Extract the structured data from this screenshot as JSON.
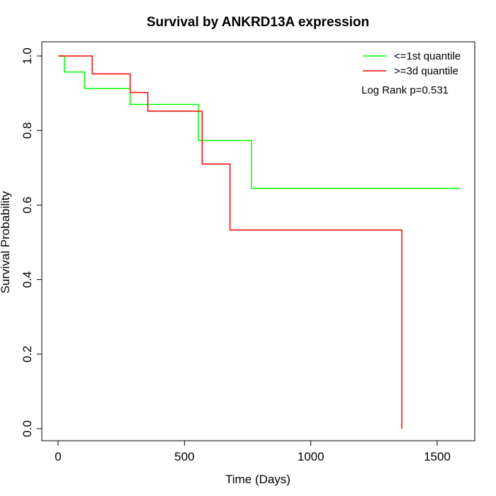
{
  "chart_data": {
    "type": "line",
    "title": "Survival by ANKRD13A expression",
    "xlabel": "Time (Days)",
    "ylabel": "Survival Probability",
    "xlim": [
      0,
      1600
    ],
    "ylim": [
      0,
      1.0
    ],
    "x_ticks": [
      0,
      500,
      1000,
      1500
    ],
    "x_tick_labels": [
      "0",
      "500",
      "1000",
      "1500"
    ],
    "y_ticks": [
      0.0,
      0.2,
      0.4,
      0.6,
      0.8,
      1.0
    ],
    "y_tick_labels": [
      "0.0",
      "0.2",
      "0.4",
      "0.6",
      "0.8",
      "1.0"
    ],
    "grid": false,
    "legend_position": "top-right",
    "annotation": "Log Rank p=0.531",
    "series": [
      {
        "name": "<=1st quantile",
        "color": "#00ff00",
        "step": true,
        "x": [
          0,
          25,
          105,
          285,
          555,
          765,
          1590
        ],
        "y": [
          1.0,
          0.957,
          0.913,
          0.87,
          0.773,
          0.645,
          0.645
        ]
      },
      {
        "name": ">=3d quantile",
        "color": "#ff0000",
        "step": true,
        "x": [
          0,
          135,
          285,
          355,
          570,
          680,
          1360,
          1360
        ],
        "y": [
          1.0,
          0.952,
          0.902,
          0.852,
          0.71,
          0.533,
          0.533,
          0.0
        ]
      }
    ]
  }
}
